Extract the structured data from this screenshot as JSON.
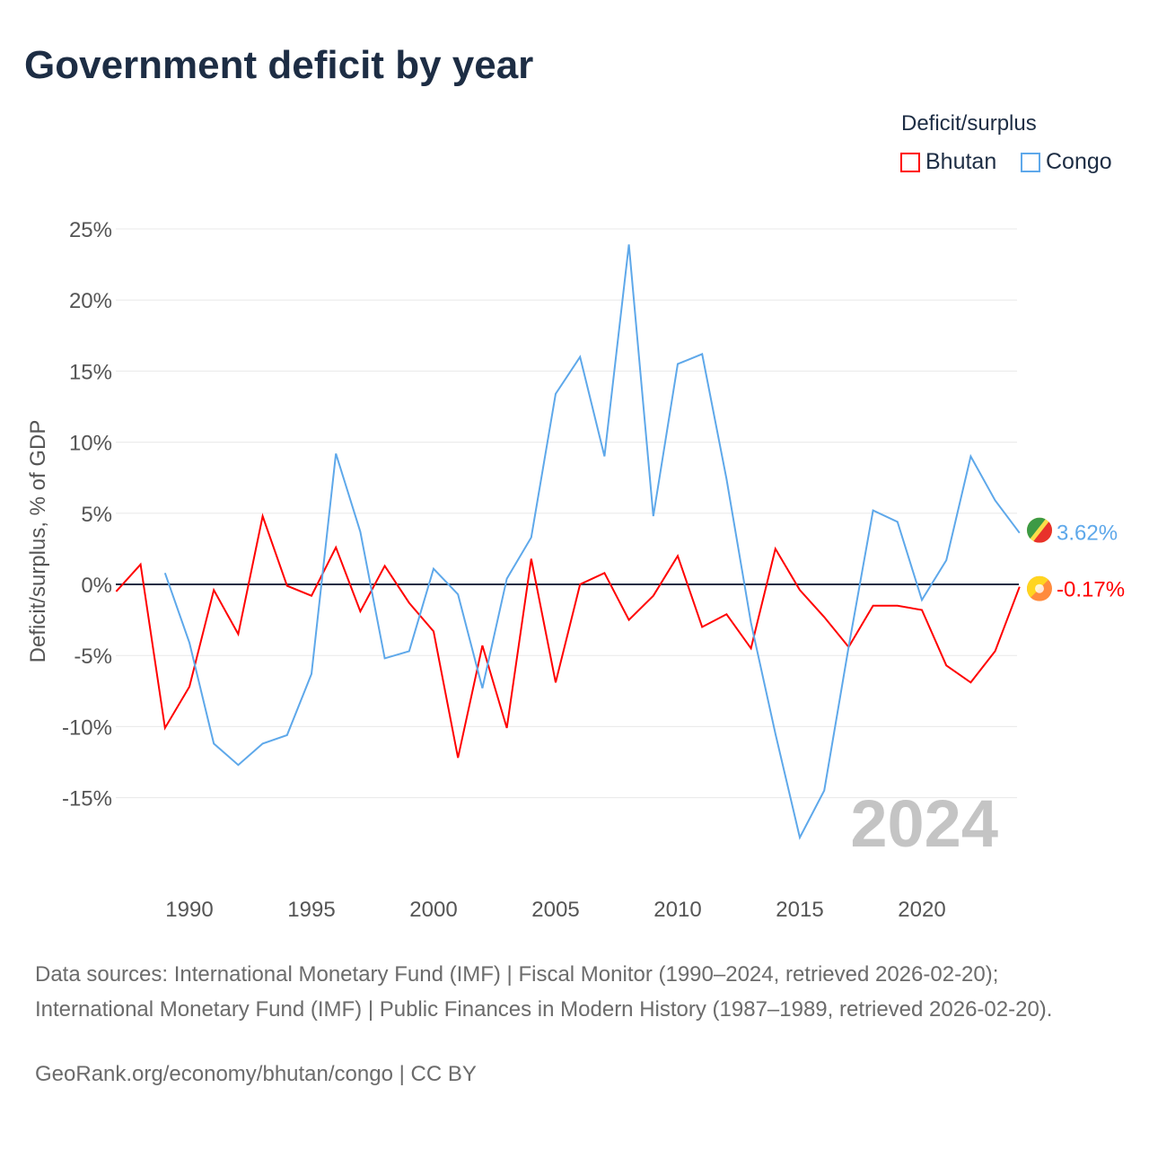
{
  "title": "Government deficit by year",
  "legend": {
    "title": "Deficit/surplus",
    "items": [
      "Bhutan",
      "Congo"
    ]
  },
  "year_label": "2024",
  "end_labels": {
    "Congo": "3.62%",
    "Bhutan": "-0.17%"
  },
  "footer": {
    "sources": "Data sources: International Monetary Fund (IMF) | Fiscal Monitor (1990–2024, retrieved 2026-02-20); International Monetary Fund (IMF) | Public Finances in Modern History (1987–1989, retrieved 2026-02-20).",
    "credit": "GeoRank.org/economy/bhutan/congo | CC BY"
  },
  "chart_data": {
    "type": "line",
    "title": "Government deficit by year",
    "xlabel": "",
    "ylabel": "Deficit/surplus, % of GDP",
    "xlim": [
      1987,
      2024
    ],
    "ylim": [
      -20,
      25
    ],
    "yticks": [
      25,
      20,
      15,
      10,
      5,
      0,
      -5,
      -10,
      -15
    ],
    "ytick_labels": [
      "25%",
      "20%",
      "15%",
      "10%",
      "5%",
      "0%",
      "-5%",
      "-10%",
      "-15%"
    ],
    "xticks": [
      1990,
      1995,
      2000,
      2005,
      2010,
      2015,
      2020
    ],
    "xtick_labels": [
      "1990",
      "1995",
      "2000",
      "2005",
      "2010",
      "2015",
      "2020"
    ],
    "grid": true,
    "legend_position": "top-right",
    "series": [
      {
        "name": "Bhutan",
        "color": "#ff0000",
        "start_year": 1987,
        "values": [
          -0.5,
          1.4,
          -10.1,
          -7.2,
          -0.4,
          -3.5,
          4.8,
          -0.1,
          -0.8,
          2.6,
          -1.9,
          1.3,
          -1.3,
          -3.3,
          -12.2,
          -4.3,
          -10.1,
          1.8,
          -6.9,
          0.0,
          0.8,
          -2.5,
          -0.8,
          2.0,
          -3.0,
          -2.1,
          -4.5,
          2.5,
          -0.4,
          -2.3,
          -4.4,
          -1.5,
          -1.5,
          -1.8,
          -5.7,
          -6.9,
          -4.7,
          -0.17
        ]
      },
      {
        "name": "Congo",
        "color": "#5ea8ea",
        "start_year": 1989,
        "values": [
          0.8,
          -4.1,
          -11.2,
          -12.7,
          -11.2,
          -10.6,
          -6.3,
          9.2,
          3.7,
          -5.2,
          -4.7,
          1.1,
          -0.7,
          -7.3,
          0.4,
          3.3,
          13.4,
          16.0,
          9.0,
          23.9,
          4.8,
          15.5,
          16.2,
          7.4,
          -2.7,
          -10.5,
          -17.8,
          -14.5,
          -4.4,
          5.2,
          4.4,
          -1.1,
          1.7,
          9.0,
          5.9,
          3.62
        ]
      }
    ]
  }
}
